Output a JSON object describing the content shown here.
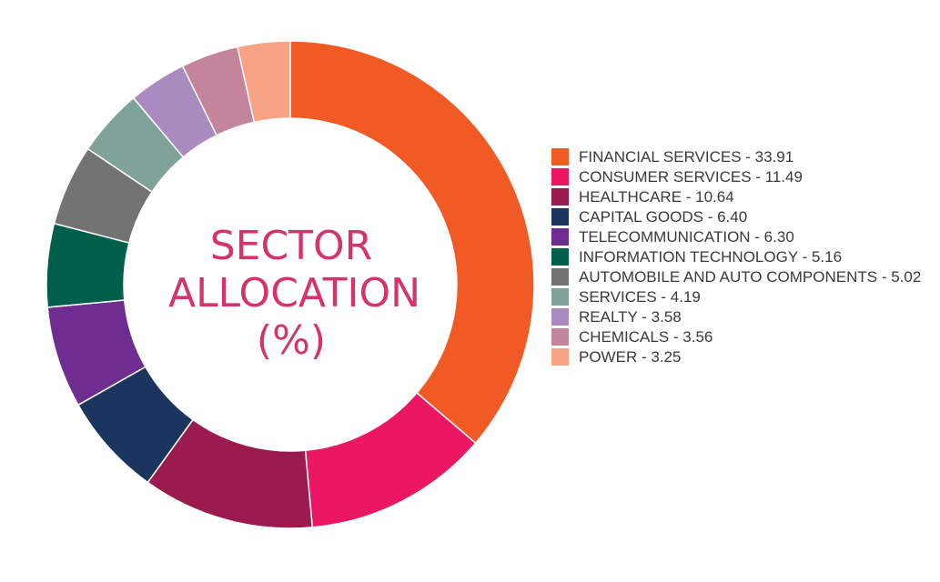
{
  "chart_data": {
    "type": "pie",
    "title": "SECTOR ALLOCATION (%)",
    "title_lines": [
      "SECTOR",
      "ALLOCATION",
      "(%)"
    ],
    "legend_position": "right",
    "slices": [
      {
        "label": "FINANCIAL SERVICES",
        "value": 33.91,
        "color": "#f15a24"
      },
      {
        "label": "CONSUMER SERVICES",
        "value": 11.49,
        "color": "#ec1763"
      },
      {
        "label": "HEALTHCARE",
        "value": 10.64,
        "color": "#9b1b4f"
      },
      {
        "label": "CAPITAL GOODS",
        "value": 6.4,
        "color": "#1c355e"
      },
      {
        "label": "TELECOMMUNICATION",
        "value": 6.3,
        "color": "#6f2c91"
      },
      {
        "label": "INFORMATION TECHNOLOGY",
        "value": 5.16,
        "color": "#005f4b"
      },
      {
        "label": "AUTOMOBILE AND AUTO COMPONENTS",
        "value": 5.02,
        "color": "#737373"
      },
      {
        "label": "SERVICES",
        "value": 4.19,
        "color": "#7fa399"
      },
      {
        "label": "REALTY",
        "value": 3.58,
        "color": "#a98bbf"
      },
      {
        "label": "CHEMICALS",
        "value": 3.56,
        "color": "#c4849c"
      },
      {
        "label": "POWER",
        "value": 3.25,
        "color": "#f7a384"
      }
    ],
    "legend_entries": [
      "FINANCIAL SERVICES - 33.91",
      "CONSUMER SERVICES - 11.49",
      "HEALTHCARE - 10.64",
      "CAPITAL GOODS - 6.40",
      "TELECOMMUNICATION - 6.30",
      "INFORMATION TECHNOLOGY - 5.16",
      "AUTOMOBILE AND AUTO COMPONENTS - 5.02",
      "SERVICES - 4.19",
      "REALTY - 3.58",
      "CHEMICALS - 3.56",
      "POWER - 3.25"
    ]
  }
}
